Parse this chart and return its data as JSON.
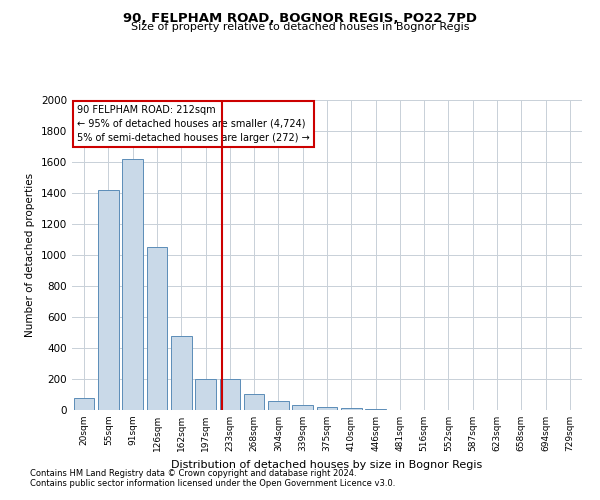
{
  "title": "90, FELPHAM ROAD, BOGNOR REGIS, PO22 7PD",
  "subtitle": "Size of property relative to detached houses in Bognor Regis",
  "xlabel": "Distribution of detached houses by size in Bognor Regis",
  "ylabel": "Number of detached properties",
  "footnote1": "Contains HM Land Registry data © Crown copyright and database right 2024.",
  "footnote2": "Contains public sector information licensed under the Open Government Licence v3.0.",
  "annotation_line1": "90 FELPHAM ROAD: 212sqm",
  "annotation_line2": "← 95% of detached houses are smaller (4,724)",
  "annotation_line3": "5% of semi-detached houses are larger (272) →",
  "bar_color": "#c9d9e8",
  "bar_edge_color": "#5b8db8",
  "red_line_color": "#cc0000",
  "annotation_box_edge": "#cc0000",
  "grid_color": "#c8d0d8",
  "categories": [
    "20sqm",
    "55sqm",
    "91sqm",
    "126sqm",
    "162sqm",
    "197sqm",
    "233sqm",
    "268sqm",
    "304sqm",
    "339sqm",
    "375sqm",
    "410sqm",
    "446sqm",
    "481sqm",
    "516sqm",
    "552sqm",
    "587sqm",
    "623sqm",
    "658sqm",
    "694sqm",
    "729sqm"
  ],
  "values": [
    80,
    1420,
    1620,
    1050,
    480,
    200,
    200,
    105,
    55,
    30,
    20,
    15,
    4,
    3,
    2,
    1,
    1,
    1,
    0,
    0,
    0
  ],
  "red_line_x": 5.68,
  "ylim": [
    0,
    2000
  ],
  "yticks": [
    0,
    200,
    400,
    600,
    800,
    1000,
    1200,
    1400,
    1600,
    1800,
    2000
  ]
}
